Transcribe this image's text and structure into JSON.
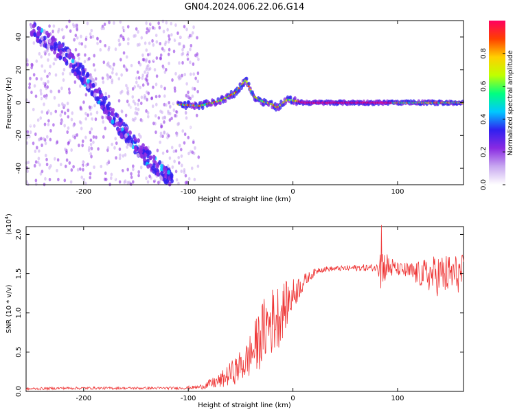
{
  "title": "GN04.2024.006.22.06.G14",
  "chart_data": [
    {
      "type": "heatmap",
      "xlabel": "Height of straight line (km)",
      "ylabel": "Frequency (Hz)",
      "xlim": [
        -255,
        163
      ],
      "ylim": [
        -50,
        50
      ],
      "xticks": [
        -200,
        -100,
        0,
        100
      ],
      "yticks": [
        -40,
        -20,
        0,
        20,
        40
      ],
      "colorbar": {
        "label": "Normalized spectral amplitude",
        "range": [
          0,
          1
        ],
        "ticks": [
          "0.0",
          "0.2",
          "0.4",
          "0.6",
          "0.8"
        ],
        "colors": [
          "#ffffff",
          "#c8a8f0",
          "#8a2be2",
          "#3020f0",
          "#00c8ff",
          "#00ff80",
          "#c0ff00",
          "#ffd000",
          "#ff4000",
          "#ff0060"
        ]
      },
      "features": [
        {
          "name": "diagonal-streak",
          "x": [
            -250,
            -215,
            -190,
            -165,
            -140,
            -115
          ],
          "y": [
            45,
            28,
            8,
            -15,
            -33,
            -48
          ]
        },
        {
          "name": "main-ridge",
          "x": [
            -110,
            -90,
            -70,
            -55,
            -45,
            -38,
            -30,
            -20,
            -15,
            -5,
            10,
            80,
            100,
            130,
            163
          ],
          "y": [
            -1,
            -2,
            1,
            6,
            14,
            4,
            1,
            -1,
            -3,
            2,
            0,
            0,
            0,
            0,
            0
          ]
        }
      ]
    },
    {
      "type": "line",
      "xlabel": "Height of straight line (km)",
      "ylabel": "SNR (10 * v/v)",
      "exponent": "(x10^4)",
      "xlim": [
        -255,
        163
      ],
      "ylim": [
        0,
        2.1
      ],
      "xticks": [
        -200,
        -100,
        0,
        100
      ],
      "yticks": [
        0,
        0.5,
        1.0,
        1.5,
        2.0
      ],
      "ytick_labels": [
        "0.0",
        "0.5",
        "1.0",
        "1.5",
        "2.0"
      ],
      "series": [
        {
          "color": "#ee3333",
          "x": [
            -255,
            -220,
            -180,
            -140,
            -110,
            -90,
            -70,
            -55,
            -45,
            -35,
            -25,
            -15,
            -5,
            5,
            15,
            25,
            40,
            60,
            80,
            85,
            100,
            120,
            140,
            163
          ],
          "y": [
            0.03,
            0.04,
            0.04,
            0.04,
            0.04,
            0.05,
            0.12,
            0.25,
            0.35,
            0.55,
            0.8,
            0.9,
            1.1,
            1.3,
            1.45,
            1.55,
            1.56,
            1.57,
            1.57,
            1.58,
            1.55,
            1.48,
            1.45,
            1.48
          ],
          "noise": [
            0.02,
            0.02,
            0.02,
            0.02,
            0.02,
            0.03,
            0.12,
            0.22,
            0.3,
            0.45,
            0.55,
            0.55,
            0.35,
            0.2,
            0.08,
            0.05,
            0.04,
            0.05,
            0.06,
            0.3,
            0.1,
            0.2,
            0.35,
            0.3
          ]
        }
      ]
    }
  ]
}
